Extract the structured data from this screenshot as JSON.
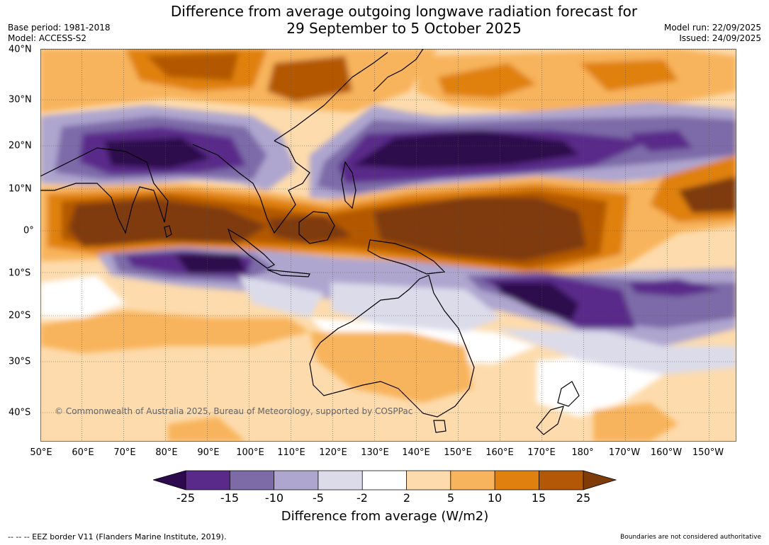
{
  "title": {
    "line1": "Difference from average outgoing longwave radiation forecast for",
    "line2": "29 September to 5 October 2025"
  },
  "meta": {
    "base_period": "Base period: 1981-2018",
    "model": "Model: ACCESS-S2",
    "model_run": "Model run: 22/09/2025",
    "issued": "Issued: 24/09/2025"
  },
  "map": {
    "copyright": "© Commonwealth of Australia 2025, Bureau of Meteorology, supported by COSPPac",
    "longitude_labels": [
      "50°E",
      "60°E",
      "70°E",
      "80°E",
      "90°E",
      "100°E",
      "110°E",
      "120°E",
      "130°E",
      "140°E",
      "150°E",
      "160°E",
      "170°E",
      "180°",
      "170°W",
      "160°W",
      "150°W"
    ],
    "latitude_labels": [
      "40°N",
      "30°N",
      "20°N",
      "10°N",
      "0°",
      "10°S",
      "20°S",
      "30°S",
      "40°S"
    ]
  },
  "colorbar": {
    "title": "Difference from average (W/m2)",
    "tick_labels": [
      "-25",
      "-15",
      "-10",
      "-5",
      "-2",
      "2",
      "5",
      "10",
      "15",
      "25"
    ],
    "colors": [
      "#2d0a4e",
      "#5a2a8a",
      "#7d6ba8",
      "#aea6cf",
      "#dcdbea",
      "#ffffff",
      "#fddbad",
      "#f8b45c",
      "#e0810f",
      "#b35806",
      "#7f3b08"
    ]
  },
  "footer": {
    "eez": "--  --  -- EEZ border V11 (Flanders Marine Institute, 2019).",
    "boundaries": "Boundaries are not considered authoritative"
  }
}
